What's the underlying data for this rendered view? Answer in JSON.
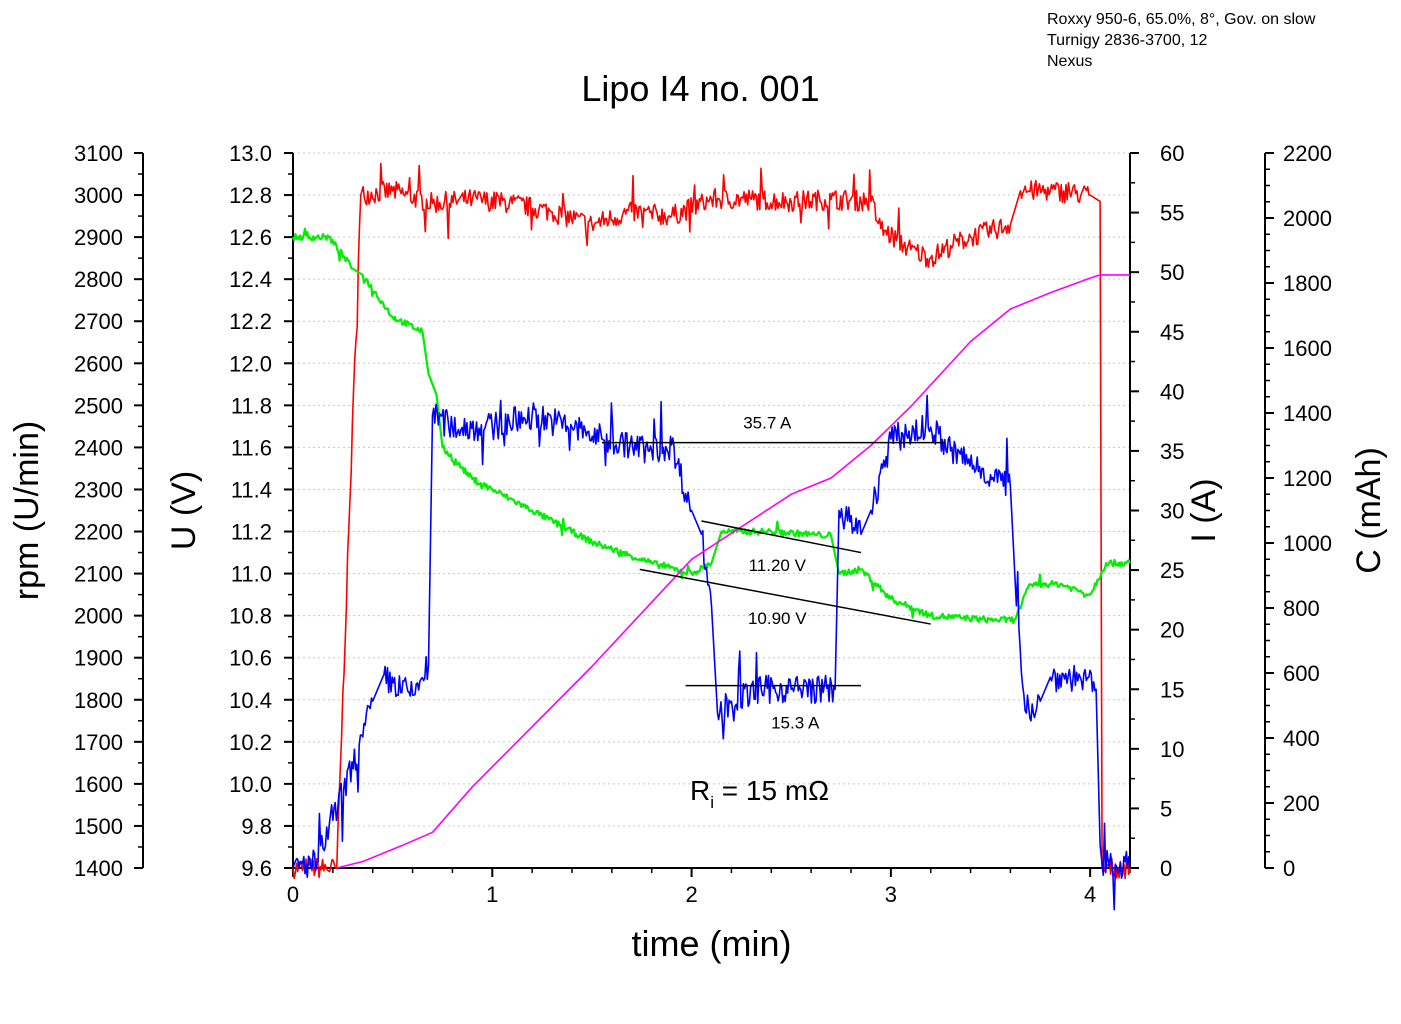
{
  "chart_data": {
    "type": "line",
    "title": "Lipo I4 no. 001",
    "info_lines": [
      "Roxxy 950-6, 65.0%, 8°, Gov. on slow",
      "Turnigy 2836-3700, 12",
      "Nexus"
    ],
    "xlabel": "time (min)",
    "xlim": [
      0,
      4.2
    ],
    "x_ticks": [
      "0",
      "1",
      "2",
      "3",
      "4"
    ],
    "axes": {
      "rpm": {
        "label": "rpm (U/min)",
        "lim": [
          1400,
          3100
        ],
        "ticks": [
          "1400",
          "1500",
          "1600",
          "1700",
          "1800",
          "1900",
          "2000",
          "2100",
          "2200",
          "2300",
          "2400",
          "2500",
          "2600",
          "2700",
          "2800",
          "2900",
          "3000",
          "3100"
        ]
      },
      "voltage": {
        "label": "U (V)",
        "lim": [
          9.6,
          13.0
        ],
        "ticks": [
          "9.6",
          "9.8",
          "10.0",
          "10.2",
          "10.4",
          "10.6",
          "10.8",
          "11.0",
          "11.2",
          "11.4",
          "11.6",
          "11.8",
          "12.0",
          "12.2",
          "12.4",
          "12.6",
          "12.8",
          "13.0"
        ]
      },
      "current": {
        "label": "I (A)",
        "lim": [
          0,
          60
        ],
        "ticks": [
          "0",
          "5",
          "10",
          "15",
          "20",
          "25",
          "30",
          "35",
          "40",
          "45",
          "50",
          "55",
          "60"
        ]
      },
      "capacity": {
        "label": "C (mAh)",
        "lim": [
          0,
          2200
        ],
        "ticks": [
          "0",
          "200",
          "400",
          "600",
          "800",
          "1000",
          "1200",
          "1400",
          "1600",
          "1800",
          "2000",
          "2200"
        ]
      }
    },
    "series": [
      {
        "name": "rpm",
        "axis": "rpm",
        "color": "#ff0000",
        "noise": 25,
        "points": [
          [
            0,
            1400
          ],
          [
            0.22,
            1400
          ],
          [
            0.34,
            3000
          ],
          [
            0.5,
            3010
          ],
          [
            0.7,
            2980
          ],
          [
            0.9,
            2990
          ],
          [
            1.1,
            2980
          ],
          [
            1.3,
            2960
          ],
          [
            1.5,
            2930
          ],
          [
            1.7,
            2960
          ],
          [
            1.9,
            2950
          ],
          [
            2.1,
            2990
          ],
          [
            2.3,
            2990
          ],
          [
            2.5,
            2985
          ],
          [
            2.7,
            2990
          ],
          [
            2.9,
            2985
          ],
          [
            2.95,
            2920
          ],
          [
            3.1,
            2870
          ],
          [
            3.2,
            2850
          ],
          [
            3.3,
            2880
          ],
          [
            3.4,
            2900
          ],
          [
            3.6,
            2930
          ],
          [
            3.65,
            3010
          ],
          [
            3.8,
            3010
          ],
          [
            4.0,
            3000
          ],
          [
            4.05,
            2985
          ],
          [
            4.06,
            1400
          ],
          [
            4.2,
            1400
          ]
        ]
      },
      {
        "name": "voltage",
        "axis": "voltage",
        "color": "#00ee00",
        "noise": 0.015,
        "points": [
          [
            0,
            12.6
          ],
          [
            0.18,
            12.6
          ],
          [
            0.3,
            12.45
          ],
          [
            0.35,
            12.42
          ],
          [
            0.5,
            12.22
          ],
          [
            0.65,
            12.15
          ],
          [
            0.68,
            11.95
          ],
          [
            0.72,
            11.85
          ],
          [
            0.75,
            11.6
          ],
          [
            0.9,
            11.45
          ],
          [
            1.0,
            11.4
          ],
          [
            1.2,
            11.3
          ],
          [
            1.5,
            11.15
          ],
          [
            1.8,
            11.05
          ],
          [
            2.0,
            11.0
          ],
          [
            2.1,
            11.05
          ],
          [
            2.15,
            11.2
          ],
          [
            2.4,
            11.2
          ],
          [
            2.7,
            11.18
          ],
          [
            2.74,
            11.0
          ],
          [
            2.85,
            11.02
          ],
          [
            3.0,
            10.88
          ],
          [
            3.2,
            10.8
          ],
          [
            3.5,
            10.78
          ],
          [
            3.62,
            10.78
          ],
          [
            3.7,
            10.95
          ],
          [
            3.85,
            10.95
          ],
          [
            4.0,
            10.9
          ],
          [
            4.08,
            11.05
          ],
          [
            4.2,
            11.05
          ]
        ]
      },
      {
        "name": "current",
        "axis": "current",
        "color": "#0000ff",
        "noise": 1.2,
        "points": [
          [
            0,
            0
          ],
          [
            0.12,
            0.5
          ],
          [
            0.2,
            4
          ],
          [
            0.35,
            11
          ],
          [
            0.4,
            14
          ],
          [
            0.45,
            16
          ],
          [
            0.6,
            14.5
          ],
          [
            0.68,
            17
          ],
          [
            0.7,
            38
          ],
          [
            0.8,
            37
          ],
          [
            1.0,
            37
          ],
          [
            1.2,
            38
          ],
          [
            1.4,
            37
          ],
          [
            1.55,
            36
          ],
          [
            1.8,
            35
          ],
          [
            1.9,
            35.5
          ],
          [
            2.0,
            30
          ],
          [
            2.05,
            28
          ],
          [
            2.1,
            22
          ],
          [
            2.13,
            13
          ],
          [
            2.2,
            14
          ],
          [
            2.35,
            15
          ],
          [
            2.5,
            15
          ],
          [
            2.72,
            15
          ],
          [
            2.74,
            30
          ],
          [
            2.85,
            28
          ],
          [
            2.9,
            30
          ],
          [
            3.0,
            36
          ],
          [
            3.2,
            37
          ],
          [
            3.3,
            35
          ],
          [
            3.5,
            33
          ],
          [
            3.6,
            32
          ],
          [
            3.63,
            22
          ],
          [
            3.68,
            13
          ],
          [
            3.75,
            14
          ],
          [
            3.8,
            16
          ],
          [
            3.95,
            16
          ],
          [
            4.03,
            15
          ],
          [
            4.05,
            2
          ],
          [
            4.06,
            0.3
          ],
          [
            4.2,
            0.3
          ]
        ]
      },
      {
        "name": "capacity",
        "axis": "capacity",
        "color": "#ff00ff",
        "noise": 0,
        "points": [
          [
            0.22,
            0
          ],
          [
            0.35,
            20
          ],
          [
            0.55,
            70
          ],
          [
            0.7,
            110
          ],
          [
            0.9,
            250
          ],
          [
            1.5,
            620
          ],
          [
            2.0,
            950
          ],
          [
            2.5,
            1150
          ],
          [
            2.7,
            1200
          ],
          [
            2.9,
            1300
          ],
          [
            3.1,
            1420
          ],
          [
            3.4,
            1620
          ],
          [
            3.6,
            1720
          ],
          [
            3.8,
            1770
          ],
          [
            4.0,
            1815
          ],
          [
            4.05,
            1825
          ],
          [
            4.2,
            1825
          ]
        ]
      }
    ],
    "annotations": [
      {
        "text": "35.7 A",
        "axis": "current",
        "line": [
          [
            1.55,
            35.7
          ],
          [
            3.27,
            35.7
          ]
        ],
        "label_at": [
          2.38,
          37.4
        ]
      },
      {
        "text": "11.20 V",
        "axis": "voltage",
        "line": [
          [
            2.05,
            11.25
          ],
          [
            2.85,
            11.1
          ]
        ],
        "label_at": [
          2.43,
          11.04
        ]
      },
      {
        "text": "10.90 V",
        "axis": "voltage",
        "line": [
          [
            1.74,
            11.02
          ],
          [
            3.2,
            10.76
          ]
        ],
        "label_at": [
          2.43,
          10.79
        ]
      },
      {
        "text": "15.3 A",
        "axis": "current",
        "line": [
          [
            1.97,
            15.3
          ],
          [
            2.85,
            15.3
          ]
        ],
        "label_at": [
          2.52,
          12.2
        ]
      }
    ],
    "ri_label": {
      "prefix": "R",
      "sub": "i",
      "suffix": " = 15 mΩ"
    },
    "grid": "horizontal-dotted"
  }
}
